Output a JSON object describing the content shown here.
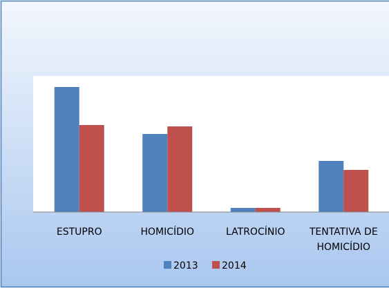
{
  "chart_data": {
    "type": "bar",
    "categories": [
      "ESTUPRO",
      "HOMICÍDIO",
      "LATROCÍNIO",
      "TENTATIVA DE HOMICÍDIO"
    ],
    "series": [
      {
        "name": "2013",
        "color": "#4f81bd",
        "values": [
          181,
          113,
          6,
          74
        ]
      },
      {
        "name": "2014",
        "color": "#c0504d",
        "values": [
          126,
          124,
          6,
          61
        ]
      }
    ],
    "ylim": [
      0,
      197
    ],
    "legend": "bottom"
  }
}
